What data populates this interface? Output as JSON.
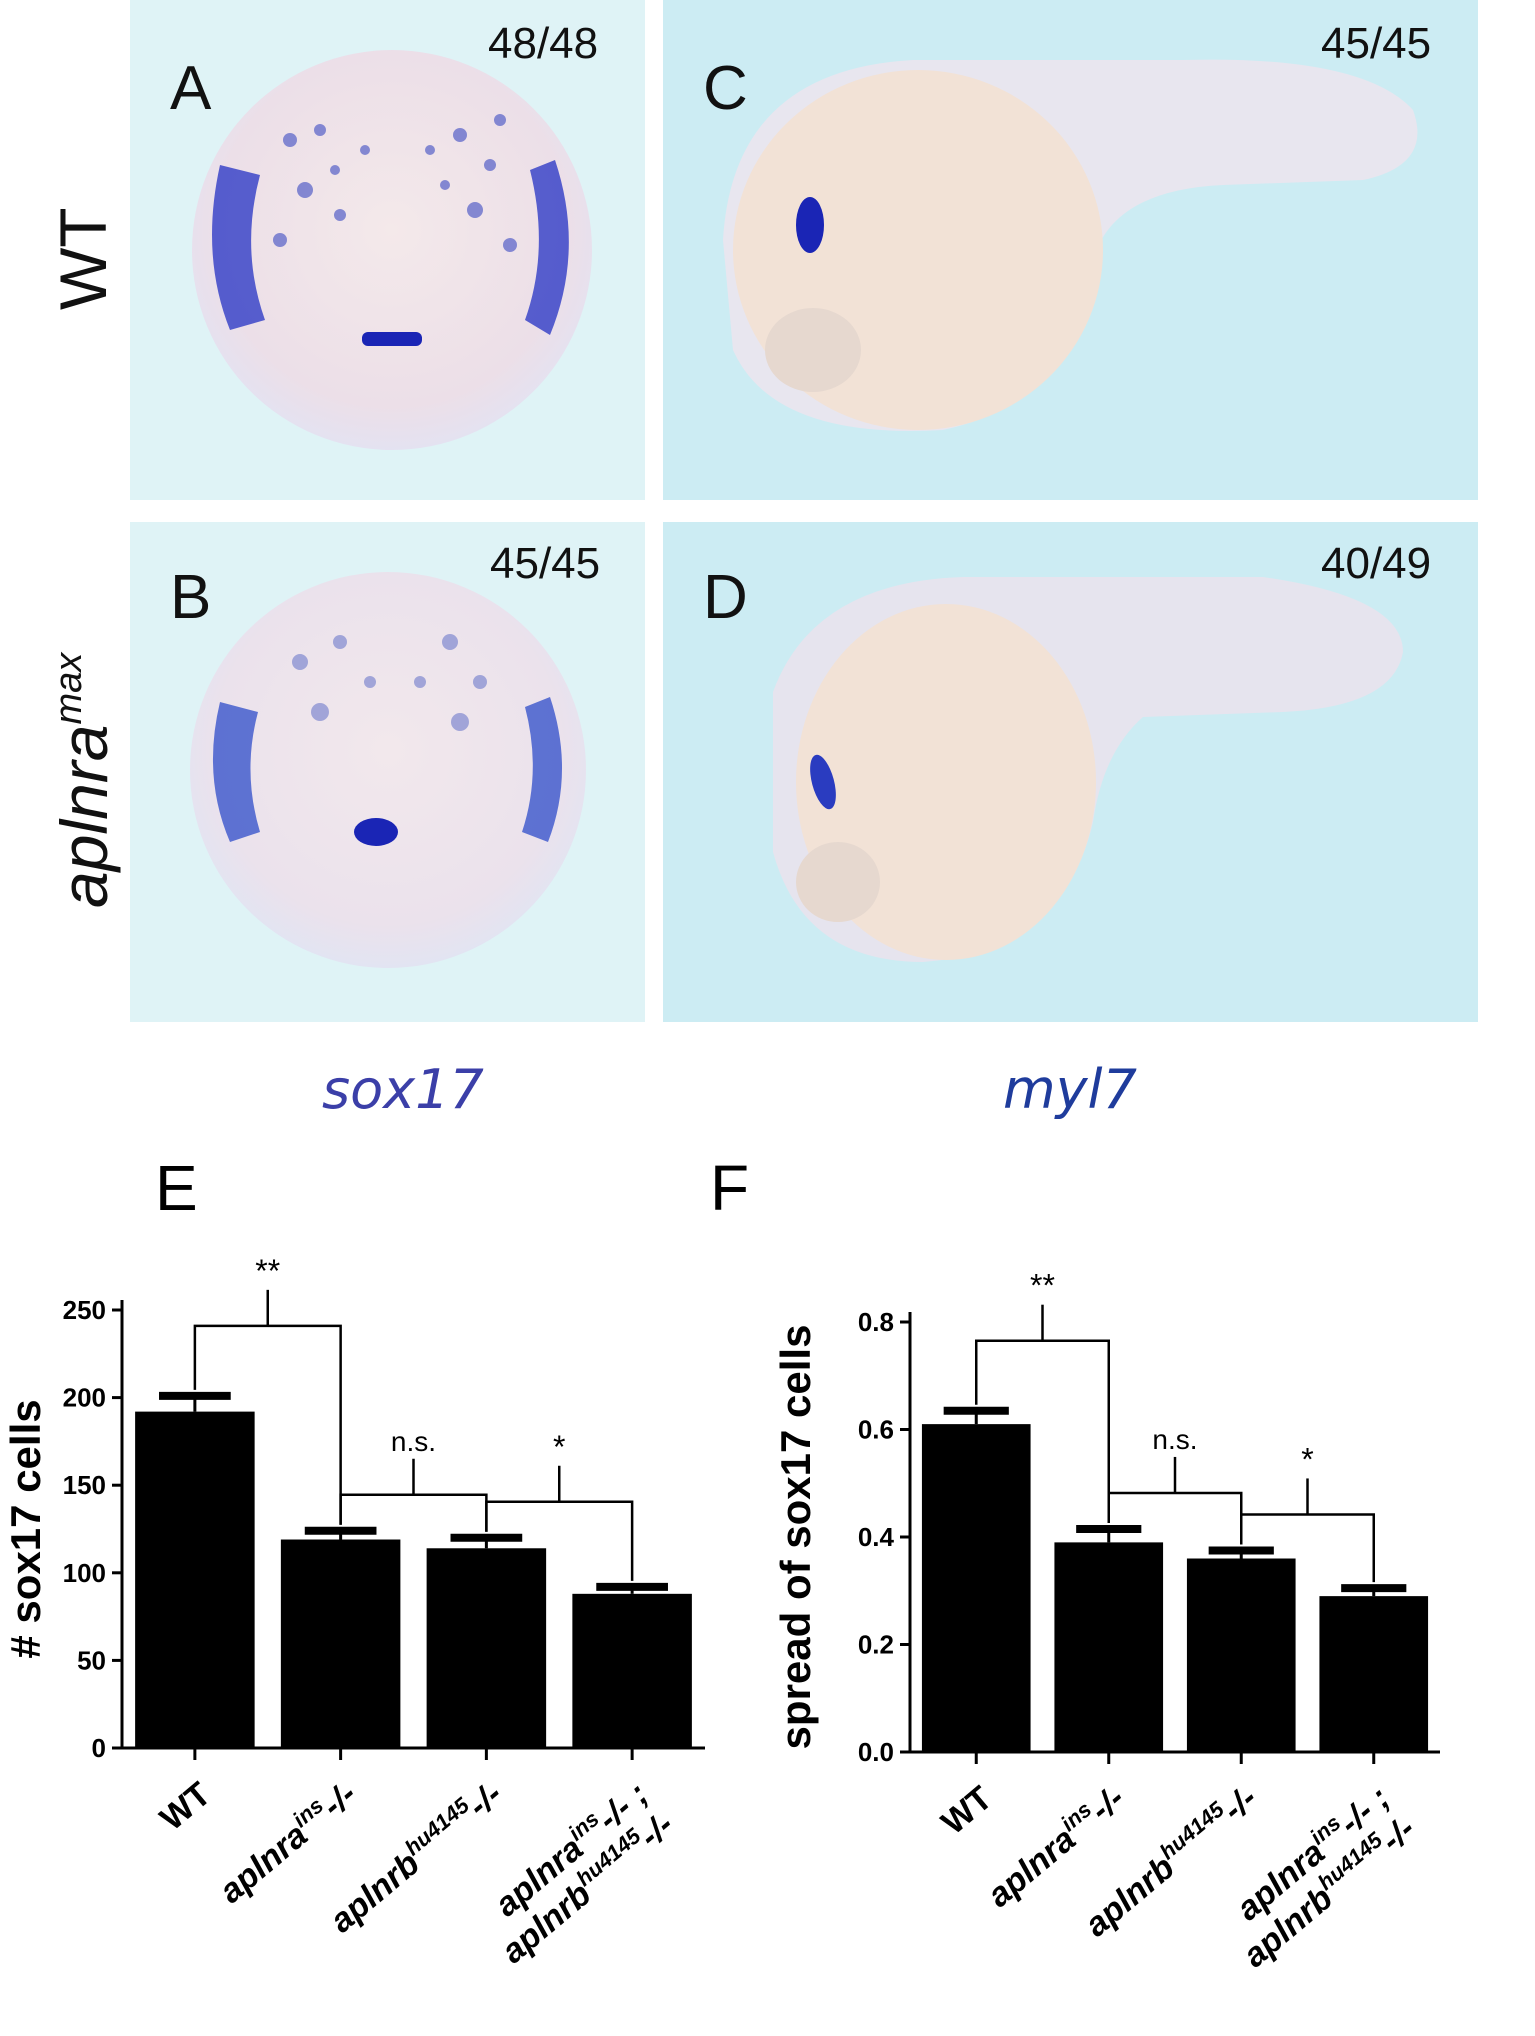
{
  "images": {
    "A": {
      "letter": "A",
      "count": "48/48"
    },
    "B": {
      "letter": "B",
      "count": "45/45"
    },
    "C": {
      "letter": "C",
      "count": "45/45"
    },
    "D": {
      "letter": "D",
      "count": "40/49"
    }
  },
  "row_labels": {
    "top": "WT",
    "bottom_main": "aplnra",
    "bottom_sup": "max"
  },
  "gene_labels": {
    "left": "sox17",
    "right": "myl7"
  },
  "chart_data": [
    {
      "panel": "E",
      "type": "bar",
      "categories": [
        "WT",
        "aplnra ins -/-",
        "aplnrb hu4145 -/-",
        "aplnra ins -/- ; aplnrb hu4145 -/-"
      ],
      "values": [
        192,
        119,
        114,
        88
      ],
      "errors": [
        9,
        5,
        6,
        4
      ],
      "ylabel": "# sox17 cells",
      "ylim": [
        0,
        250
      ],
      "yticks": [
        "0",
        "50",
        "100",
        "150",
        "200",
        "250"
      ],
      "significance": [
        {
          "pair": [
            0,
            1
          ],
          "label": "**"
        },
        {
          "pair": [
            1,
            2
          ],
          "label": "n.s."
        },
        {
          "pair": [
            2,
            3
          ],
          "label": "*"
        }
      ]
    },
    {
      "panel": "F",
      "type": "bar",
      "categories": [
        "WT",
        "aplnra ins -/-",
        "aplnrb hu4145 -/-",
        "aplnra ins -/- ; aplnrb hu4145 -/-"
      ],
      "values": [
        0.61,
        0.39,
        0.36,
        0.29
      ],
      "errors": [
        0.025,
        0.025,
        0.015,
        0.015
      ],
      "ylabel": "spread of sox17 cells",
      "ylim": [
        0,
        0.8
      ],
      "yticks": [
        "0.0",
        "0.2",
        "0.4",
        "0.6",
        "0.8"
      ],
      "significance": [
        {
          "pair": [
            0,
            1
          ],
          "label": "**"
        },
        {
          "pair": [
            1,
            2
          ],
          "label": "n.s."
        },
        {
          "pair": [
            2,
            3
          ],
          "label": "*"
        }
      ]
    }
  ],
  "tick_labels": {
    "wt": "WT",
    "aplnra": "aplnra",
    "aplnrb": "aplnrb",
    "ins": "ins",
    "hu": "hu4145",
    "mut": "-/-",
    "mut_sep": "-/- ;"
  }
}
